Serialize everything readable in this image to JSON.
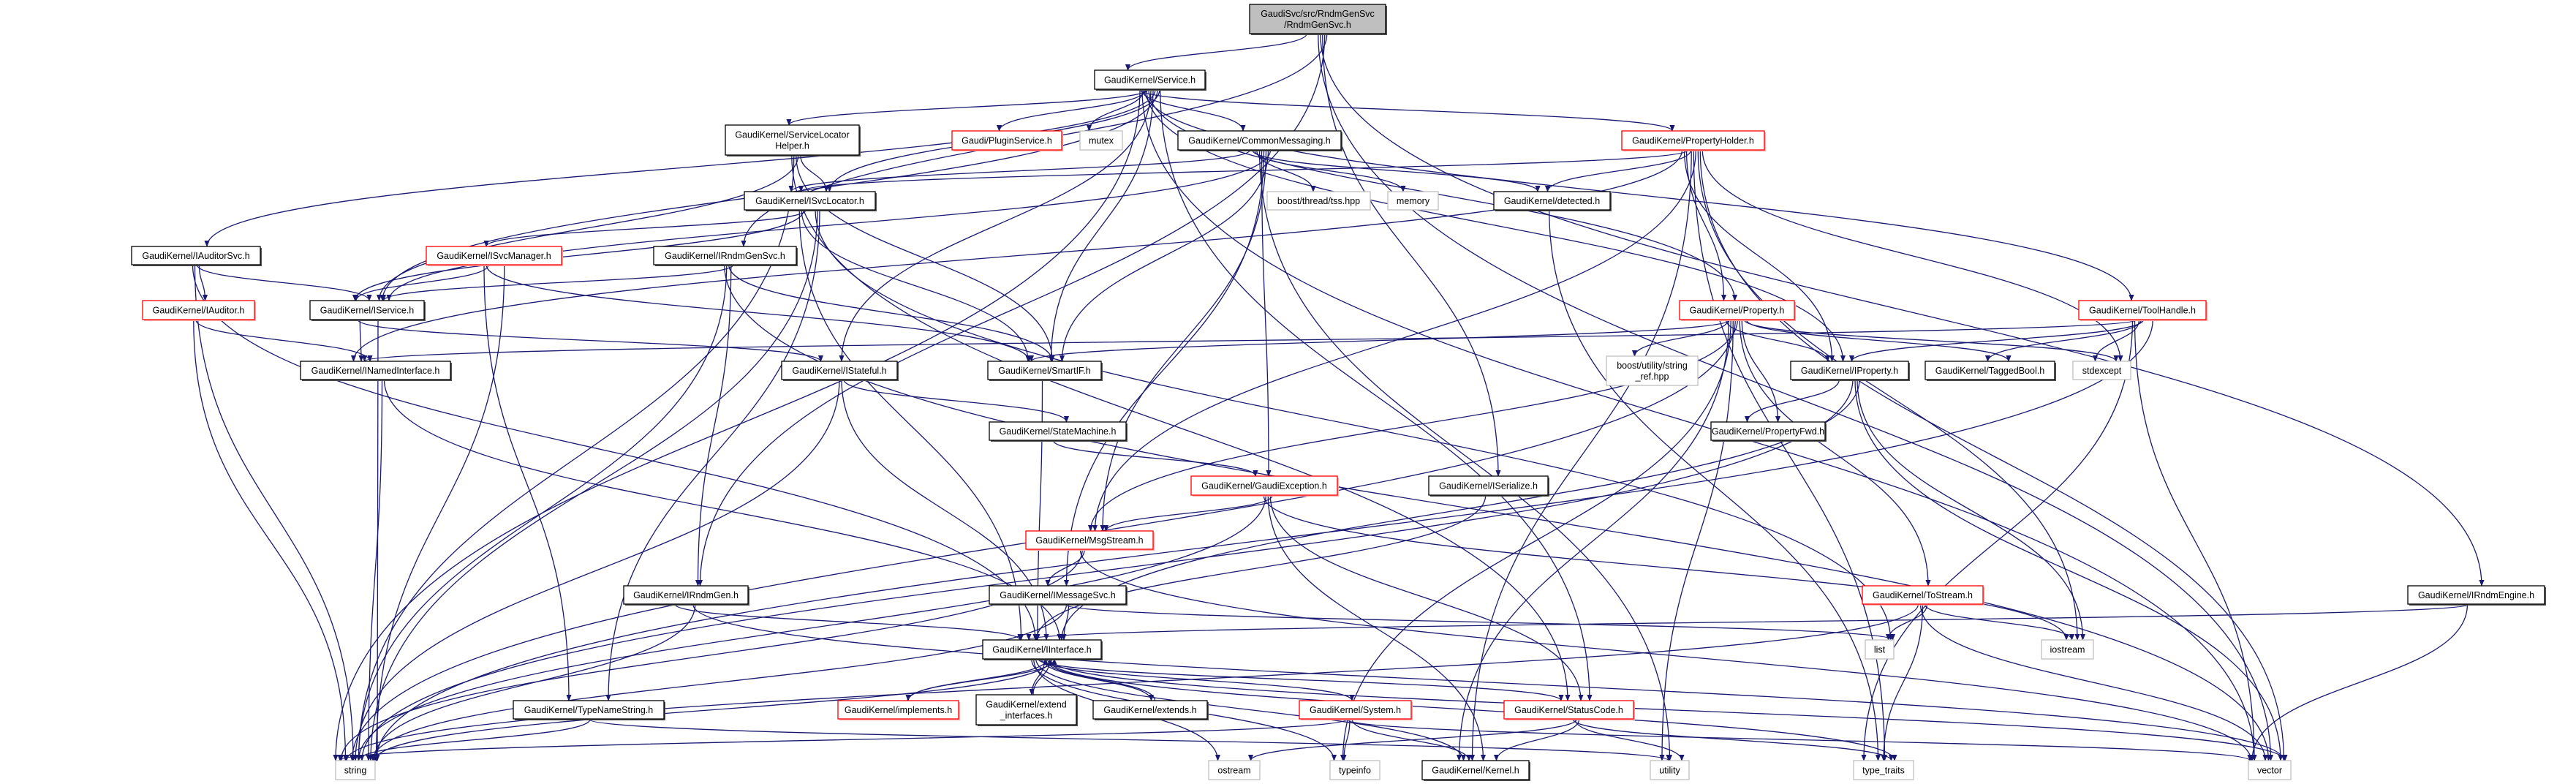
{
  "colors": {
    "edge": "#191970",
    "root_fill": "#bfbfbf",
    "normal_border": "#000000",
    "incomplete_border": "#ff0000",
    "system_border": "#bfbfbf"
  },
  "nodes": [
    {
      "id": "root",
      "lines": [
        "GaudiSvc/src/RndmGenSvc",
        "/RndmGenSvc.h"
      ],
      "kind": "root"
    },
    {
      "id": "service",
      "lines": [
        "GaudiKernel/Service.h"
      ],
      "kind": "normal"
    },
    {
      "id": "slh",
      "lines": [
        "GaudiKernel/ServiceLocator",
        "Helper.h"
      ],
      "kind": "normal"
    },
    {
      "id": "plugin",
      "lines": [
        "Gaudi/PluginService.h"
      ],
      "kind": "red"
    },
    {
      "id": "mutex",
      "lines": [
        "mutex"
      ],
      "kind": "system"
    },
    {
      "id": "commsg",
      "lines": [
        "GaudiKernel/CommonMessaging.h"
      ],
      "kind": "normal"
    },
    {
      "id": "propholder",
      "lines": [
        "GaudiKernel/PropertyHolder.h"
      ],
      "kind": "red"
    },
    {
      "id": "isvcloc",
      "lines": [
        "GaudiKernel/ISvcLocator.h"
      ],
      "kind": "normal"
    },
    {
      "id": "tss",
      "lines": [
        "boost/thread/tss.hpp"
      ],
      "kind": "system"
    },
    {
      "id": "memory",
      "lines": [
        "memory"
      ],
      "kind": "system"
    },
    {
      "id": "detected",
      "lines": [
        "GaudiKernel/detected.h"
      ],
      "kind": "normal"
    },
    {
      "id": "iauditorsvc",
      "lines": [
        "GaudiKernel/IAuditorSvc.h"
      ],
      "kind": "normal"
    },
    {
      "id": "isvcmgr",
      "lines": [
        "GaudiKernel/ISvcManager.h"
      ],
      "kind": "red"
    },
    {
      "id": "irndmgensvc",
      "lines": [
        "GaudiKernel/IRndmGenSvc.h"
      ],
      "kind": "normal"
    },
    {
      "id": "iauditor",
      "lines": [
        "GaudiKernel/IAuditor.h"
      ],
      "kind": "red"
    },
    {
      "id": "iservice",
      "lines": [
        "GaudiKernel/IService.h"
      ],
      "kind": "normal"
    },
    {
      "id": "property",
      "lines": [
        "GaudiKernel/Property.h"
      ],
      "kind": "red"
    },
    {
      "id": "toolhandle",
      "lines": [
        "GaudiKernel/ToolHandle.h"
      ],
      "kind": "red"
    },
    {
      "id": "inamed",
      "lines": [
        "GaudiKernel/INamedInterface.h"
      ],
      "kind": "normal"
    },
    {
      "id": "istateful",
      "lines": [
        "GaudiKernel/IStateful.h"
      ],
      "kind": "normal"
    },
    {
      "id": "smartif",
      "lines": [
        "GaudiKernel/SmartIF.h"
      ],
      "kind": "normal"
    },
    {
      "id": "stringref",
      "lines": [
        "boost/utility/string",
        "_ref.hpp"
      ],
      "kind": "system"
    },
    {
      "id": "iproperty",
      "lines": [
        "GaudiKernel/IProperty.h"
      ],
      "kind": "normal"
    },
    {
      "id": "taggedbool",
      "lines": [
        "GaudiKernel/TaggedBool.h"
      ],
      "kind": "normal"
    },
    {
      "id": "stdexcept",
      "lines": [
        "stdexcept"
      ],
      "kind": "system"
    },
    {
      "id": "statemachine",
      "lines": [
        "GaudiKernel/StateMachine.h"
      ],
      "kind": "normal"
    },
    {
      "id": "propfwd",
      "lines": [
        "GaudiKernel/PropertyFwd.h"
      ],
      "kind": "normal"
    },
    {
      "id": "gaudiexc",
      "lines": [
        "GaudiKernel/GaudiException.h"
      ],
      "kind": "red"
    },
    {
      "id": "iserialize",
      "lines": [
        "GaudiKernel/ISerialize.h"
      ],
      "kind": "normal"
    },
    {
      "id": "msgstream",
      "lines": [
        "GaudiKernel/MsgStream.h"
      ],
      "kind": "red"
    },
    {
      "id": "irndmgen",
      "lines": [
        "GaudiKernel/IRndmGen.h"
      ],
      "kind": "normal"
    },
    {
      "id": "imessagesvc",
      "lines": [
        "GaudiKernel/IMessageSvc.h"
      ],
      "kind": "normal"
    },
    {
      "id": "tostream",
      "lines": [
        "GaudiKernel/ToStream.h"
      ],
      "kind": "red"
    },
    {
      "id": "irndmengine",
      "lines": [
        "GaudiKernel/IRndmEngine.h"
      ],
      "kind": "normal"
    },
    {
      "id": "iinterface",
      "lines": [
        "GaudiKernel/IInterface.h"
      ],
      "kind": "normal"
    },
    {
      "id": "list",
      "lines": [
        "list"
      ],
      "kind": "system"
    },
    {
      "id": "iostream",
      "lines": [
        "iostream"
      ],
      "kind": "system"
    },
    {
      "id": "implements",
      "lines": [
        "GaudiKernel/implements.h"
      ],
      "kind": "red"
    },
    {
      "id": "extendif",
      "lines": [
        "GaudiKernel/extend",
        "_interfaces.h"
      ],
      "kind": "normal"
    },
    {
      "id": "extends",
      "lines": [
        "GaudiKernel/extends.h"
      ],
      "kind": "normal"
    },
    {
      "id": "system",
      "lines": [
        "GaudiKernel/System.h"
      ],
      "kind": "red"
    },
    {
      "id": "statuscode",
      "lines": [
        "GaudiKernel/StatusCode.h"
      ],
      "kind": "red"
    },
    {
      "id": "typenamestring",
      "lines": [
        "GaudiKernel/TypeNameString.h"
      ],
      "kind": "normal"
    },
    {
      "id": "string",
      "lines": [
        "string"
      ],
      "kind": "system"
    },
    {
      "id": "ostream",
      "lines": [
        "ostream"
      ],
      "kind": "system"
    },
    {
      "id": "typeinfo",
      "lines": [
        "typeinfo"
      ],
      "kind": "system"
    },
    {
      "id": "kernel",
      "lines": [
        "GaudiKernel/Kernel.h"
      ],
      "kind": "normal"
    },
    {
      "id": "utility",
      "lines": [
        "utility"
      ],
      "kind": "system"
    },
    {
      "id": "typetraits",
      "lines": [
        "type_traits"
      ],
      "kind": "system"
    },
    {
      "id": "vector",
      "lines": [
        "vector"
      ],
      "kind": "system"
    }
  ],
  "edges": [
    [
      "root",
      "service"
    ],
    [
      "root",
      "irndmgensvc"
    ],
    [
      "root",
      "irndmgen"
    ],
    [
      "root",
      "iserialize"
    ],
    [
      "root",
      "irndmengine"
    ],
    [
      "root",
      "vector"
    ],
    [
      "service",
      "slh"
    ],
    [
      "service",
      "plugin"
    ],
    [
      "service",
      "mutex"
    ],
    [
      "service",
      "commsg"
    ],
    [
      "service",
      "propholder"
    ],
    [
      "service",
      "isvcloc"
    ],
    [
      "service",
      "iservice"
    ],
    [
      "service",
      "iauditorsvc"
    ],
    [
      "service",
      "smartif"
    ],
    [
      "service",
      "istateful"
    ],
    [
      "service",
      "property"
    ],
    [
      "service",
      "iproperty"
    ],
    [
      "service",
      "toolhandle"
    ],
    [
      "service",
      "vector"
    ],
    [
      "service",
      "string"
    ],
    [
      "service",
      "statuscode"
    ],
    [
      "slh",
      "isvcloc"
    ],
    [
      "slh",
      "iservice"
    ],
    [
      "slh",
      "smartif"
    ],
    [
      "slh",
      "string"
    ],
    [
      "slh",
      "statuscode"
    ],
    [
      "commsg",
      "tss"
    ],
    [
      "commsg",
      "memory"
    ],
    [
      "commsg",
      "detected"
    ],
    [
      "commsg",
      "isvcloc"
    ],
    [
      "commsg",
      "iservice"
    ],
    [
      "commsg",
      "smartif"
    ],
    [
      "commsg",
      "msgstream"
    ],
    [
      "commsg",
      "imessagesvc"
    ],
    [
      "commsg",
      "gaudiexc"
    ],
    [
      "commsg",
      "utility"
    ],
    [
      "propholder",
      "detected"
    ],
    [
      "propholder",
      "isvcloc"
    ],
    [
      "propholder",
      "property"
    ],
    [
      "propholder",
      "iproperty"
    ],
    [
      "propholder",
      "inamed"
    ],
    [
      "propholder",
      "stdexcept"
    ],
    [
      "propholder",
      "vector"
    ],
    [
      "propholder",
      "iostream"
    ],
    [
      "propholder",
      "msgstream"
    ],
    [
      "propholder",
      "typetraits"
    ],
    [
      "propholder",
      "kernel"
    ],
    [
      "isvcloc",
      "isvcmgr"
    ],
    [
      "isvcloc",
      "iservice"
    ],
    [
      "isvcloc",
      "smartif"
    ],
    [
      "isvcloc",
      "iinterface"
    ],
    [
      "isvcloc",
      "typenamestring"
    ],
    [
      "isvcloc",
      "string"
    ],
    [
      "isvcloc",
      "list"
    ],
    [
      "iauditorsvc",
      "iauditor"
    ],
    [
      "iauditorsvc",
      "iservice"
    ],
    [
      "iauditorsvc",
      "string"
    ],
    [
      "iauditorsvc",
      "iinterface"
    ],
    [
      "isvcmgr",
      "iservice"
    ],
    [
      "isvcmgr",
      "smartif"
    ],
    [
      "isvcmgr",
      "typenamestring"
    ],
    [
      "isvcmgr",
      "string"
    ],
    [
      "irndmgensvc",
      "iservice"
    ],
    [
      "irndmgensvc",
      "irndmgen"
    ],
    [
      "irndmgensvc",
      "smartif"
    ],
    [
      "irndmgensvc",
      "string"
    ],
    [
      "irndmgensvc",
      "vector"
    ],
    [
      "iauditor",
      "inamed"
    ],
    [
      "iauditor",
      "string"
    ],
    [
      "iservice",
      "inamed"
    ],
    [
      "iservice",
      "istateful"
    ],
    [
      "iservice",
      "string"
    ],
    [
      "inamed",
      "iinterface"
    ],
    [
      "inamed",
      "string"
    ],
    [
      "istateful",
      "statemachine"
    ],
    [
      "istateful",
      "iinterface"
    ],
    [
      "istateful",
      "string"
    ],
    [
      "smartif",
      "iinterface"
    ],
    [
      "statemachine",
      "gaudiexc"
    ],
    [
      "property",
      "smartif"
    ],
    [
      "property",
      "stringref"
    ],
    [
      "property",
      "iproperty"
    ],
    [
      "property",
      "taggedbool"
    ],
    [
      "property",
      "stdexcept"
    ],
    [
      "property",
      "propfwd"
    ],
    [
      "property",
      "tostream"
    ],
    [
      "property",
      "msgstream"
    ],
    [
      "property",
      "string"
    ],
    [
      "property",
      "utility"
    ],
    [
      "property",
      "typeinfo"
    ],
    [
      "property",
      "kernel"
    ],
    [
      "iproperty",
      "propfwd"
    ],
    [
      "iproperty",
      "iinterface"
    ],
    [
      "iproperty",
      "iostream"
    ],
    [
      "iproperty",
      "vector"
    ],
    [
      "iproperty",
      "string"
    ],
    [
      "toolhandle",
      "iproperty"
    ],
    [
      "toolhandle",
      "taggedbool"
    ],
    [
      "toolhandle",
      "stdexcept"
    ],
    [
      "toolhandle",
      "inamed"
    ],
    [
      "toolhandle",
      "vector"
    ],
    [
      "toolhandle",
      "typetraits"
    ],
    [
      "toolhandle",
      "string"
    ],
    [
      "gaudiexc",
      "msgstream"
    ],
    [
      "gaudiexc",
      "statuscode"
    ],
    [
      "gaudiexc",
      "kernel"
    ],
    [
      "gaudiexc",
      "string"
    ],
    [
      "gaudiexc",
      "iostream"
    ],
    [
      "iserialize",
      "iinterface"
    ],
    [
      "msgstream",
      "imessagesvc"
    ],
    [
      "msgstream",
      "string"
    ],
    [
      "msgstream",
      "vector"
    ],
    [
      "imessagesvc",
      "iinterface"
    ],
    [
      "imessagesvc",
      "string"
    ],
    [
      "imessagesvc",
      "list"
    ],
    [
      "tostream",
      "list"
    ],
    [
      "tostream",
      "iostream"
    ],
    [
      "tostream",
      "typetraits"
    ],
    [
      "tostream",
      "vector"
    ],
    [
      "tostream",
      "string"
    ],
    [
      "irndmengine",
      "iinterface"
    ],
    [
      "irndmengine",
      "vector"
    ],
    [
      "irndmgen",
      "iinterface"
    ],
    [
      "irndmgen",
      "string"
    ],
    [
      "irndmgen",
      "vector"
    ],
    [
      "iinterface",
      "implements"
    ],
    [
      "iinterface",
      "extendif"
    ],
    [
      "iinterface",
      "extends"
    ],
    [
      "iinterface",
      "system"
    ],
    [
      "iinterface",
      "statuscode"
    ],
    [
      "iinterface",
      "kernel"
    ],
    [
      "iinterface",
      "ostream"
    ],
    [
      "iinterface",
      "typeinfo"
    ],
    [
      "iinterface",
      "string"
    ],
    [
      "iinterface",
      "vector"
    ],
    [
      "iinterface",
      "typetraits"
    ],
    [
      "implements",
      "iinterface"
    ],
    [
      "extendif",
      "iinterface"
    ],
    [
      "extends",
      "iinterface"
    ],
    [
      "system",
      "kernel"
    ],
    [
      "system",
      "typeinfo"
    ],
    [
      "system",
      "string"
    ],
    [
      "system",
      "vector"
    ],
    [
      "statuscode",
      "kernel"
    ],
    [
      "statuscode",
      "ostream"
    ],
    [
      "statuscode",
      "utility"
    ],
    [
      "statuscode",
      "typetraits"
    ],
    [
      "typenamestring",
      "string"
    ],
    [
      "typenamestring",
      "utility"
    ],
    [
      "detected",
      "typetraits"
    ]
  ]
}
